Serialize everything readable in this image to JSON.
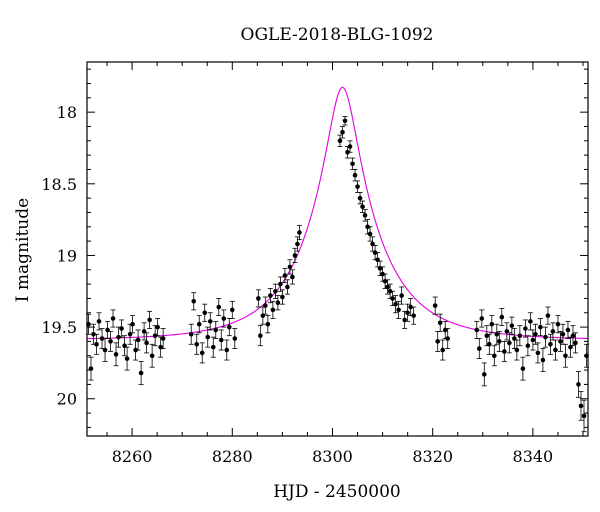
{
  "chart_data": {
    "type": "scatter",
    "title": "OGLE-2018-BLG-1092",
    "xlabel": "HJD - 2450000",
    "ylabel": "I magnitude",
    "xlim": [
      8251,
      8351
    ],
    "ylim": [
      20.26,
      17.65
    ],
    "y_inverted": true,
    "x_ticks": [
      8260,
      8280,
      8300,
      8320,
      8340
    ],
    "y_ticks": [
      18,
      18.5,
      19,
      19.5,
      20
    ],
    "x_tick_labels": [
      "8260",
      "8280",
      "8300",
      "8320",
      "8340"
    ],
    "y_tick_labels": [
      "18",
      "18.5",
      "19",
      "19.5",
      "20"
    ],
    "model": {
      "t0": 8302,
      "tE": 14,
      "u0": 0.2,
      "baseline_mag": 19.59,
      "color": "#e000e0"
    },
    "marker_color": "#000000",
    "series": [
      {
        "points": [
          [
            8251.3,
            19.48,
            0.07
          ],
          [
            8251.8,
            19.79,
            0.08
          ],
          [
            8252.3,
            19.55,
            0.07
          ],
          [
            8252.9,
            19.62,
            0.07
          ],
          [
            8253.4,
            19.46,
            0.06
          ],
          [
            8254.0,
            19.58,
            0.07
          ],
          [
            8254.6,
            19.66,
            0.08
          ],
          [
            8255.1,
            19.52,
            0.06
          ],
          [
            8255.7,
            19.6,
            0.07
          ],
          [
            8256.2,
            19.44,
            0.06
          ],
          [
            8256.8,
            19.69,
            0.08
          ],
          [
            8257.3,
            19.57,
            0.07
          ],
          [
            8257.9,
            19.51,
            0.06
          ],
          [
            8258.5,
            19.63,
            0.07
          ],
          [
            8259.0,
            19.72,
            0.08
          ],
          [
            8259.6,
            19.55,
            0.07
          ],
          [
            8260.1,
            19.48,
            0.06
          ],
          [
            8260.7,
            19.66,
            0.07
          ],
          [
            8261.2,
            19.59,
            0.07
          ],
          [
            8261.8,
            19.82,
            0.08
          ],
          [
            8262.4,
            19.53,
            0.06
          ],
          [
            8262.9,
            19.61,
            0.07
          ],
          [
            8263.5,
            19.45,
            0.06
          ],
          [
            8264.0,
            19.7,
            0.08
          ],
          [
            8264.6,
            19.56,
            0.07
          ],
          [
            8265.1,
            19.5,
            0.06
          ],
          [
            8265.7,
            19.64,
            0.07
          ],
          [
            8266.2,
            19.58,
            0.07
          ],
          [
            8271.8,
            19.55,
            0.07
          ],
          [
            8272.3,
            19.32,
            0.06
          ],
          [
            8272.9,
            19.62,
            0.07
          ],
          [
            8273.4,
            19.48,
            0.06
          ],
          [
            8274.0,
            19.68,
            0.07
          ],
          [
            8274.5,
            19.4,
            0.06
          ],
          [
            8275.1,
            19.57,
            0.07
          ],
          [
            8275.6,
            19.46,
            0.06
          ],
          [
            8276.2,
            19.64,
            0.07
          ],
          [
            8276.7,
            19.52,
            0.06
          ],
          [
            8277.3,
            19.36,
            0.06
          ],
          [
            8277.8,
            19.59,
            0.07
          ],
          [
            8278.3,
            19.44,
            0.06
          ],
          [
            8278.9,
            19.66,
            0.07
          ],
          [
            8279.4,
            19.5,
            0.06
          ],
          [
            8280.0,
            19.38,
            0.06
          ],
          [
            8280.5,
            19.58,
            0.07
          ],
          [
            8285.2,
            19.3,
            0.06
          ],
          [
            8285.6,
            19.56,
            0.07
          ],
          [
            8286.1,
            19.42,
            0.06
          ],
          [
            8286.6,
            19.35,
            0.06
          ],
          [
            8287.1,
            19.48,
            0.06
          ],
          [
            8287.6,
            19.28,
            0.05
          ],
          [
            8288.1,
            19.38,
            0.06
          ],
          [
            8288.6,
            19.25,
            0.05
          ],
          [
            8289.1,
            19.33,
            0.05
          ],
          [
            8289.6,
            19.2,
            0.05
          ],
          [
            8290.0,
            19.29,
            0.05
          ],
          [
            8290.5,
            19.14,
            0.05
          ],
          [
            8291.0,
            19.22,
            0.05
          ],
          [
            8291.5,
            19.08,
            0.05
          ],
          [
            8292.0,
            19.15,
            0.05
          ],
          [
            8292.5,
            19.0,
            0.05
          ],
          [
            8293.0,
            18.92,
            0.05
          ],
          [
            8293.4,
            18.84,
            0.05
          ],
          [
            8301.5,
            18.2,
            0.04
          ],
          [
            8302.0,
            18.14,
            0.04
          ],
          [
            8302.5,
            18.06,
            0.03
          ],
          [
            8303.0,
            18.28,
            0.04
          ],
          [
            8303.5,
            18.24,
            0.04
          ],
          [
            8304.0,
            18.36,
            0.04
          ],
          [
            8304.5,
            18.44,
            0.04
          ],
          [
            8305.0,
            18.52,
            0.04
          ],
          [
            8305.5,
            18.6,
            0.04
          ],
          [
            8306.0,
            18.66,
            0.04
          ],
          [
            8306.5,
            18.72,
            0.04
          ],
          [
            8307.0,
            18.8,
            0.05
          ],
          [
            8307.5,
            18.85,
            0.05
          ],
          [
            8308.0,
            18.92,
            0.05
          ],
          [
            8308.5,
            18.98,
            0.05
          ],
          [
            8309.0,
            19.03,
            0.05
          ],
          [
            8309.5,
            19.09,
            0.05
          ],
          [
            8310.0,
            19.13,
            0.05
          ],
          [
            8310.5,
            19.18,
            0.05
          ],
          [
            8311.0,
            19.22,
            0.05
          ],
          [
            8311.5,
            19.25,
            0.05
          ],
          [
            8312.0,
            19.3,
            0.05
          ],
          [
            8312.6,
            19.34,
            0.06
          ],
          [
            8313.2,
            19.38,
            0.06
          ],
          [
            8313.8,
            19.28,
            0.06
          ],
          [
            8314.4,
            19.45,
            0.06
          ],
          [
            8315.0,
            19.4,
            0.06
          ],
          [
            8315.6,
            19.36,
            0.06
          ],
          [
            8316.2,
            19.42,
            0.06
          ],
          [
            8320.5,
            19.35,
            0.06
          ],
          [
            8321.0,
            19.6,
            0.07
          ],
          [
            8321.5,
            19.47,
            0.06
          ],
          [
            8322.0,
            19.66,
            0.07
          ],
          [
            8322.5,
            19.52,
            0.06
          ],
          [
            8323.0,
            19.58,
            0.07
          ],
          [
            8328.8,
            19.52,
            0.06
          ],
          [
            8329.3,
            19.65,
            0.07
          ],
          [
            8329.8,
            19.44,
            0.06
          ],
          [
            8330.3,
            19.83,
            0.08
          ],
          [
            8330.8,
            19.56,
            0.07
          ],
          [
            8331.3,
            19.62,
            0.07
          ],
          [
            8331.8,
            19.48,
            0.06
          ],
          [
            8332.3,
            19.7,
            0.07
          ],
          [
            8332.8,
            19.55,
            0.07
          ],
          [
            8333.3,
            19.6,
            0.07
          ],
          [
            8333.8,
            19.43,
            0.06
          ],
          [
            8334.3,
            19.67,
            0.07
          ],
          [
            8334.8,
            19.53,
            0.06
          ],
          [
            8335.3,
            19.61,
            0.07
          ],
          [
            8335.8,
            19.49,
            0.06
          ],
          [
            8336.3,
            19.58,
            0.07
          ],
          [
            8336.8,
            19.66,
            0.07
          ],
          [
            8337.4,
            19.56,
            0.07
          ],
          [
            8338.0,
            19.79,
            0.08
          ],
          [
            8338.5,
            19.51,
            0.06
          ],
          [
            8339.0,
            19.63,
            0.07
          ],
          [
            8339.5,
            19.46,
            0.06
          ],
          [
            8340.0,
            19.59,
            0.07
          ],
          [
            8340.5,
            19.55,
            0.07
          ],
          [
            8341.0,
            19.68,
            0.07
          ],
          [
            8341.5,
            19.5,
            0.06
          ],
          [
            8342.0,
            19.73,
            0.08
          ],
          [
            8342.5,
            19.57,
            0.07
          ],
          [
            8343.0,
            19.42,
            0.06
          ],
          [
            8343.5,
            19.62,
            0.07
          ],
          [
            8344.0,
            19.53,
            0.06
          ],
          [
            8344.5,
            19.66,
            0.07
          ],
          [
            8345.0,
            19.48,
            0.06
          ],
          [
            8345.5,
            19.6,
            0.07
          ],
          [
            8346.0,
            19.55,
            0.07
          ],
          [
            8346.5,
            19.7,
            0.08
          ],
          [
            8347.0,
            19.52,
            0.06
          ],
          [
            8347.5,
            19.64,
            0.07
          ],
          [
            8348.0,
            19.56,
            0.07
          ],
          [
            8348.5,
            19.61,
            0.07
          ],
          [
            8349.1,
            19.9,
            0.09
          ],
          [
            8349.6,
            20.05,
            0.1
          ],
          [
            8350.2,
            20.12,
            0.11
          ],
          [
            8350.7,
            19.7,
            0.08
          ]
        ]
      }
    ]
  }
}
